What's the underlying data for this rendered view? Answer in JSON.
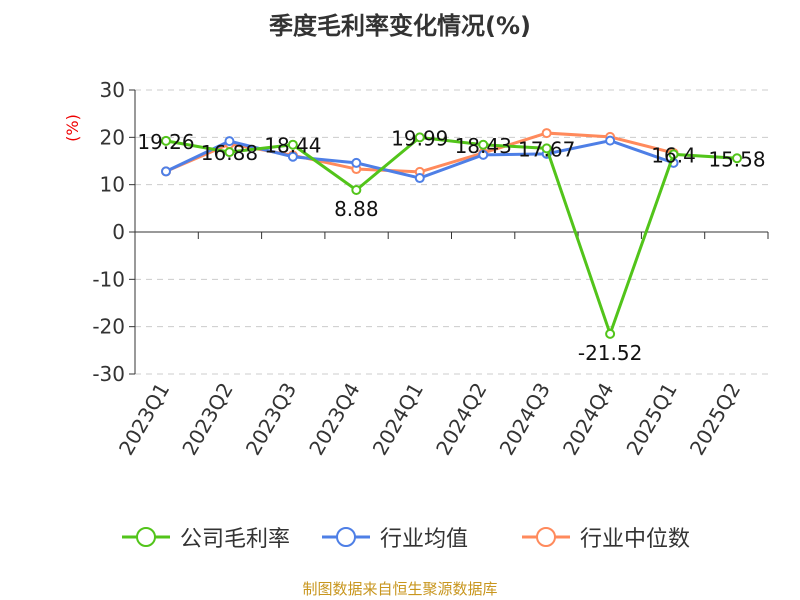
{
  "title": "季度毛利率变化情况(%)",
  "source": "制图数据来自恒生聚源数据库",
  "chart_data": {
    "type": "line",
    "title": "季度毛利率变化情况(%)",
    "ylabel": "(%)",
    "ylim": [
      -30,
      30
    ],
    "yticks": [
      30,
      20,
      10,
      0,
      -10,
      -20,
      -30
    ],
    "grid": true,
    "legend_position": "bottom",
    "categories": [
      "2023Q1",
      "2023Q2",
      "2023Q3",
      "2023Q4",
      "2024Q1",
      "2024Q2",
      "2024Q3",
      "2024Q4",
      "2025Q1",
      "2025Q2"
    ],
    "series": [
      {
        "name": "公司毛利率",
        "color": "#52c41a",
        "labels": true,
        "values": [
          19.26,
          16.88,
          18.44,
          8.88,
          19.99,
          18.43,
          17.67,
          -21.52,
          16.4,
          15.58
        ]
      },
      {
        "name": "行业均值",
        "color": "#4e7fe6",
        "values": [
          12.8,
          19.2,
          15.9,
          14.6,
          11.4,
          16.3,
          16.5,
          19.3,
          14.6,
          null
        ]
      },
      {
        "name": "行业中位数",
        "color": "#ff8a5c",
        "values": [
          12.8,
          18.6,
          16.2,
          13.3,
          12.7,
          16.7,
          20.9,
          20.1,
          16.7,
          null
        ]
      }
    ]
  }
}
